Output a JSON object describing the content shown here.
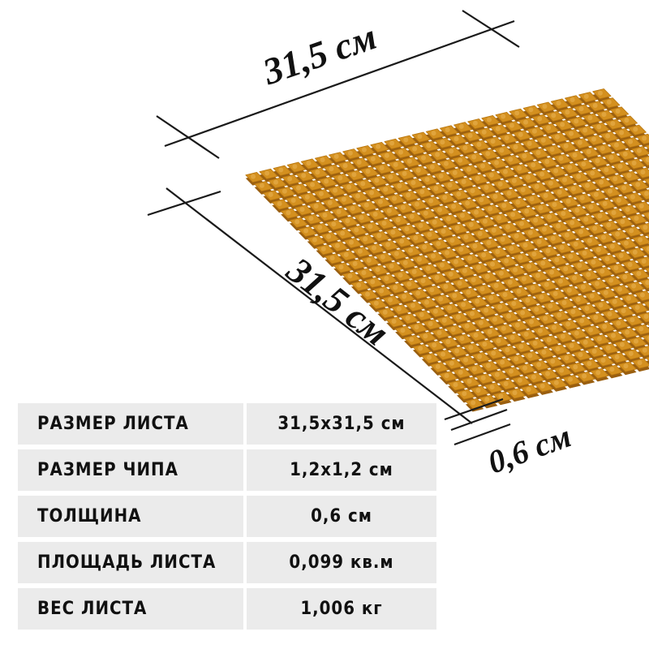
{
  "dimensions": {
    "width_label": "31,5 см",
    "length_label": "31,5 см",
    "thickness_label": "0,6 см"
  },
  "tile_color": "#d4901f",
  "specs": [
    {
      "label": "РАЗМЕР ЛИСТА",
      "value": "31,5x31,5 см"
    },
    {
      "label": "РАЗМЕР ЧИПА",
      "value": "1,2x1,2 см"
    },
    {
      "label": "ТОЛЩИНА",
      "value": "0,6 см"
    },
    {
      "label": "ПЛОЩАДЬ ЛИСТА",
      "value": "0,099 кв.м"
    },
    {
      "label": "ВЕС ЛИСТА",
      "value": "1,006 кг"
    }
  ]
}
